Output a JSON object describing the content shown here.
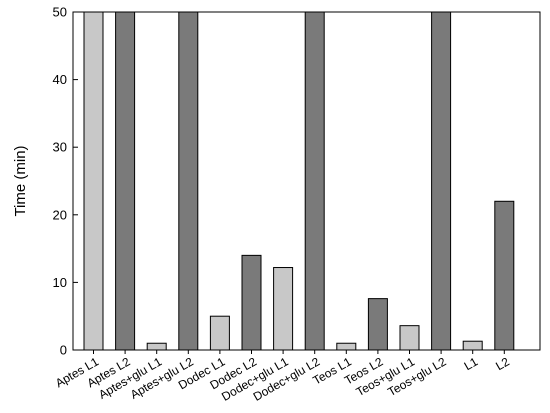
{
  "chart_data": {
    "type": "bar",
    "title": "",
    "xlabel": "",
    "ylabel": "Time (min)",
    "ylim": [
      0,
      50
    ],
    "yticks": [
      "0",
      "10",
      "20",
      "30",
      "40",
      "50"
    ],
    "grid": false,
    "categories": [
      "Aptes L1",
      "Aptes L2",
      "Aptes+glu L1",
      "Aptes+glu L2",
      "Dodec L1",
      "Dodec L2",
      "Dodec+glu L1",
      "Dodec+glu L2",
      "Teos L1",
      "Teos L2",
      "Teos+glu L1",
      "Teos+glu L2",
      "L1",
      "L2"
    ],
    "values": [
      50,
      50,
      1,
      50,
      5,
      14,
      12.2,
      50,
      1,
      7.6,
      3.6,
      50,
      1.3,
      22
    ],
    "bar_colors": [
      "#c8c8c8",
      "#7a7a7a",
      "#c8c8c8",
      "#7a7a7a",
      "#c8c8c8",
      "#7a7a7a",
      "#c8c8c8",
      "#7a7a7a",
      "#c8c8c8",
      "#7a7a7a",
      "#c8c8c8",
      "#7a7a7a",
      "#c8c8c8",
      "#7a7a7a"
    ]
  }
}
